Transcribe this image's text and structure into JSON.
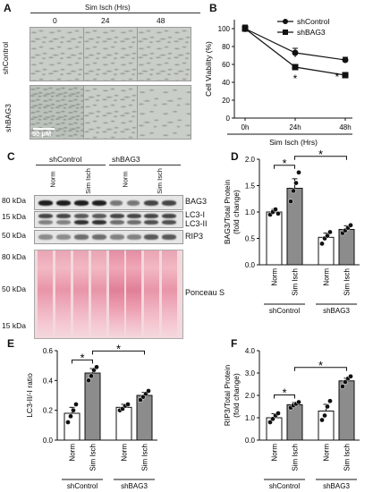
{
  "panels": {
    "a": "A",
    "b": "B",
    "c": "C",
    "d": "D",
    "e": "E",
    "f": "F"
  },
  "panel_a": {
    "header": "Sim Isch (Hrs)",
    "columns": [
      "0",
      "24",
      "48"
    ],
    "rows": [
      "shControl",
      "shBAG3"
    ],
    "scale_bar": "50 μM"
  },
  "panel_c": {
    "groups": [
      "shControl",
      "shBAG3"
    ],
    "lanes": [
      "Norm",
      "Sim Isch",
      "Norm",
      "Sim Isch"
    ],
    "markers": [
      "80 kDa",
      "15 kDa",
      "50 kDa",
      "80 kDa",
      "50 kDa",
      "15 kDa"
    ],
    "labels": [
      "BAG3",
      "LC3-I",
      "LC3-II",
      "RIP3",
      "Ponceau S"
    ]
  },
  "colors": {
    "open_bar": "#ffffff",
    "filled_bar": "#8c8c8c",
    "ponceau": "#e895a8"
  },
  "chart_data": [
    {
      "panel": "B",
      "type": "line",
      "x": [
        "0h",
        "24h",
        "48h"
      ],
      "ylabel": "Cell Viability (%)",
      "xlabel": "Sim Isch (Hrs)",
      "ylim": [
        0,
        110
      ],
      "yticks": [
        "0",
        "20",
        "40",
        "60",
        "80",
        "100"
      ],
      "series": [
        {
          "name": "shControl",
          "values": [
            100,
            73,
            65
          ],
          "errors": [
            4,
            5,
            3
          ],
          "marker": "circle"
        },
        {
          "name": "shBAG3",
          "values": [
            100,
            57,
            48
          ],
          "errors": [
            4,
            3,
            3
          ],
          "marker": "square"
        }
      ],
      "annotations": [
        "*",
        "*"
      ]
    },
    {
      "panel": "D",
      "type": "bar",
      "categories": [
        "Norm",
        "Sim Isch",
        "Norm",
        "Sim Isch"
      ],
      "groups": [
        "shControl",
        "shBAG3"
      ],
      "values": [
        1.0,
        1.45,
        0.52,
        0.67
      ],
      "errors": [
        0.05,
        0.18,
        0.08,
        0.07
      ],
      "points": [
        [
          0.95,
          1.0,
          1.05,
          0.97
        ],
        [
          1.2,
          1.4,
          1.55,
          1.75
        ],
        [
          0.4,
          0.5,
          0.55,
          0.62
        ],
        [
          0.6,
          0.65,
          0.7,
          0.75
        ]
      ],
      "ylabel": "BAG3/Total Protein\n(fold change)",
      "ylim": [
        0,
        2.0
      ],
      "yticks": [
        "0.0",
        "0.5",
        "1.0",
        "1.5",
        "2.0"
      ],
      "significance": [
        "*",
        "*"
      ]
    },
    {
      "panel": "E",
      "type": "bar",
      "categories": [
        "Norm",
        "Sim Isch",
        "Norm",
        "Sim Isch"
      ],
      "groups": [
        "shControl",
        "shBAG3"
      ],
      "values": [
        0.18,
        0.45,
        0.22,
        0.3
      ],
      "errors": [
        0.04,
        0.03,
        0.02,
        0.02
      ],
      "points": [
        [
          0.12,
          0.16,
          0.2,
          0.24
        ],
        [
          0.4,
          0.43,
          0.47,
          0.49
        ],
        [
          0.2,
          0.21,
          0.23,
          0.24
        ],
        [
          0.27,
          0.29,
          0.31,
          0.33
        ]
      ],
      "ylabel": "LC3-II/-I ratio",
      "ylim": [
        0,
        0.6
      ],
      "yticks": [
        "0.0",
        "0.2",
        "0.4",
        "0.6"
      ],
      "significance": [
        "*",
        "*"
      ]
    },
    {
      "panel": "F",
      "type": "bar",
      "categories": [
        "Norm",
        "Sim Isch",
        "Norm",
        "Sim Isch"
      ],
      "groups": [
        "shControl",
        "shBAG3"
      ],
      "values": [
        1.0,
        1.58,
        1.3,
        2.65
      ],
      "errors": [
        0.18,
        0.1,
        0.3,
        0.12
      ],
      "points": [
        [
          0.8,
          0.95,
          1.1,
          1.2
        ],
        [
          1.45,
          1.55,
          1.62,
          1.7
        ],
        [
          0.9,
          1.1,
          1.5,
          1.75
        ],
        [
          2.4,
          2.6,
          2.75,
          2.85
        ]
      ],
      "ylabel": "RIP3/Total Protein\n(fold change)",
      "ylim": [
        0,
        4.0
      ],
      "yticks": [
        "0.0",
        "1.0",
        "2.0",
        "3.0",
        "4.0"
      ],
      "significance": [
        "*",
        "*"
      ]
    }
  ]
}
